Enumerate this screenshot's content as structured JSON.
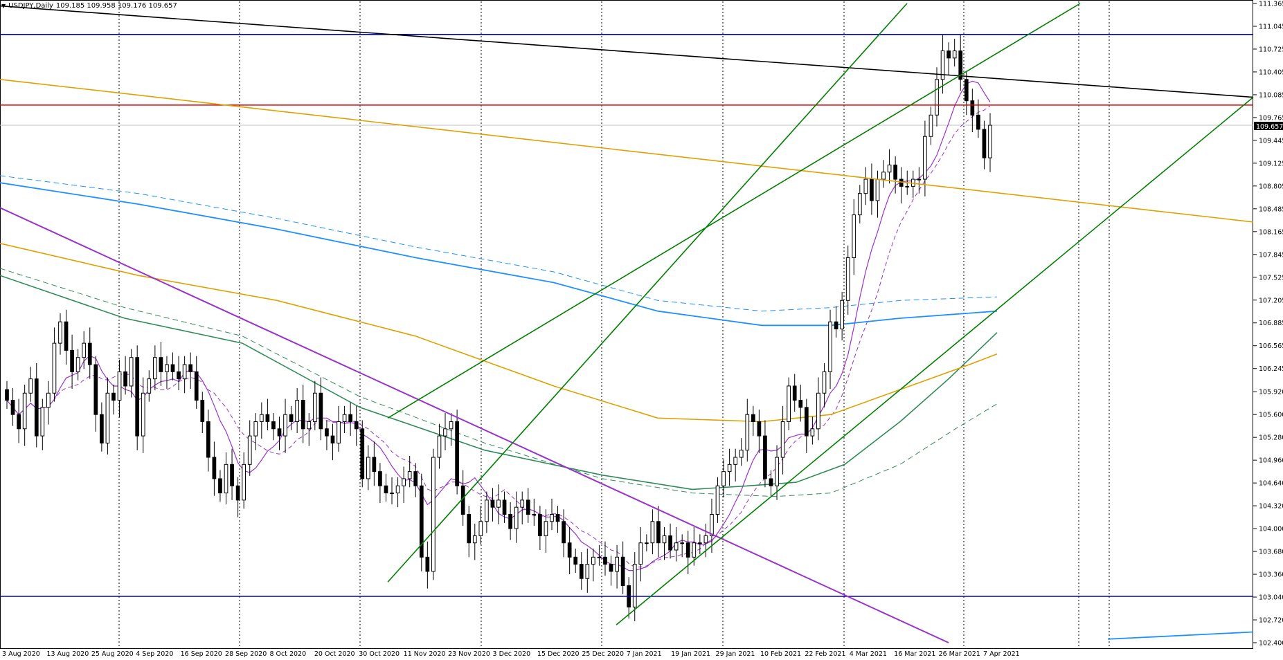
{
  "header": {
    "symbol_label": "USDJPY,Daily",
    "ohlc_label": "109.185 109.958 109.176 109.657",
    "collapse_icon": "triangle-down-icon"
  },
  "chart_data": {
    "type": "candlestick",
    "symbol": "USDJPY",
    "timeframe": "Daily",
    "ylim": [
      102.4,
      111.365
    ],
    "price_ticks": [
      "111.365",
      "111.045",
      "110.725",
      "110.405",
      "110.085",
      "109.765",
      "109.445",
      "109.125",
      "108.805",
      "108.485",
      "108.165",
      "107.845",
      "107.525",
      "107.205",
      "106.885",
      "106.565",
      "106.245",
      "105.920",
      "105.600",
      "105.280",
      "104.960",
      "104.640",
      "104.320",
      "104.000",
      "103.680",
      "103.360",
      "103.040",
      "102.720",
      "102.400"
    ],
    "date_labels": [
      "3 Aug 2020",
      "13 Aug 2020",
      "25 Aug 2020",
      "4 Sep 2020",
      "16 Sep 2020",
      "28 Sep 2020",
      "8 Oct 2020",
      "20 Oct 2020",
      "30 Oct 2020",
      "11 Nov 2020",
      "23 Nov 2020",
      "3 Dec 2020",
      "15 Dec 2020",
      "25 Dec 2020",
      "7 Jan 2021",
      "19 Jan 2021",
      "29 Jan 2021",
      "10 Feb 2021",
      "22 Feb 2021",
      "4 Mar 2021",
      "16 Mar 2021",
      "26 Mar 2021",
      "7 Apr 2021"
    ],
    "current_price": "109.657",
    "colors": {
      "bull_fill": "#ffffff",
      "bear_fill": "#000000",
      "horizontal_support": "#0000cc",
      "horizontal_resistance": "#dd0000",
      "channel": "#008000",
      "downtrend": "#9932cc",
      "long_trend": "#000000",
      "orange_trend": "#e0a000",
      "ma_purple": "#9932cc",
      "ma_green": "#2e8b57",
      "ma_orange": "#e0a000",
      "ma_blue": "#1e90ff",
      "grid": "#000000"
    },
    "horizontal_levels": [
      {
        "name": "upper-blue-level",
        "price": 110.93
      },
      {
        "name": "red-level",
        "price": 109.94
      },
      {
        "name": "lower-blue-level",
        "price": 103.05
      }
    ],
    "closes": [
      105.8,
      105.6,
      105.4,
      105.9,
      106.1,
      105.3,
      105.7,
      105.9,
      106.6,
      106.9,
      106.5,
      106.2,
      106.4,
      106.6,
      106.3,
      105.6,
      105.2,
      105.9,
      105.8,
      106.2,
      106.0,
      106.4,
      105.3,
      105.9,
      106.1,
      106.4,
      106.2,
      106.3,
      106.2,
      106.1,
      106.3,
      106.2,
      105.8,
      105.5,
      105.0,
      104.7,
      104.5,
      104.9,
      104.6,
      104.4,
      104.9,
      105.3,
      105.5,
      105.6,
      105.5,
      105.4,
      105.3,
      105.6,
      105.5,
      105.8,
      105.4,
      105.5,
      105.9,
      105.4,
      105.3,
      105.2,
      105.5,
      105.6,
      105.5,
      105.4,
      104.7,
      105.0,
      104.8,
      104.6,
      104.5,
      104.5,
      104.6,
      104.7,
      104.8,
      104.6,
      103.6,
      103.4,
      105.0,
      105.3,
      105.4,
      105.5,
      104.6,
      104.2,
      103.8,
      103.9,
      104.1,
      104.4,
      104.3,
      104.4,
      104.2,
      104.0,
      104.3,
      104.4,
      104.2,
      104.2,
      103.9,
      104.1,
      104.2,
      104.1,
      103.8,
      103.6,
      103.5,
      103.3,
      103.5,
      103.6,
      103.6,
      103.5,
      103.4,
      103.6,
      103.2,
      102.9,
      103.5,
      103.8,
      103.8,
      104.1,
      103.8,
      103.9,
      103.7,
      103.8,
      103.8,
      103.6,
      103.8,
      103.8,
      103.9,
      104.2,
      104.6,
      104.8,
      104.9,
      105.0,
      105.1,
      105.6,
      105.5,
      105.3,
      104.7,
      104.6,
      105.0,
      105.5,
      106.0,
      105.8,
      105.7,
      105.3,
      105.4,
      105.9,
      106.2,
      106.9,
      106.8,
      107.2,
      107.8,
      108.4,
      108.7,
      108.9,
      108.6,
      108.9,
      109.0,
      109.1,
      108.9,
      108.8,
      108.8,
      108.9,
      108.9,
      109.5,
      109.8,
      110.3,
      110.7,
      110.6,
      110.7,
      110.3,
      110.0,
      109.8,
      109.6,
      109.2,
      109.657
    ]
  }
}
